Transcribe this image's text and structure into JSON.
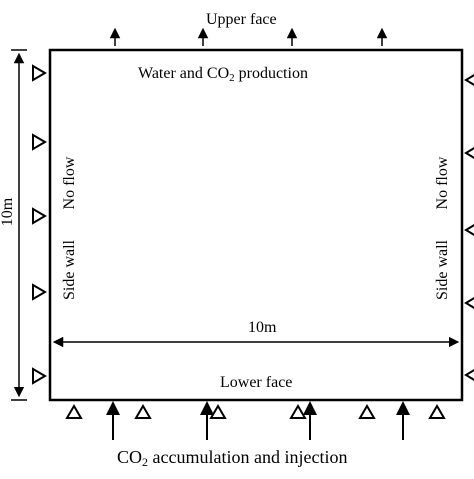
{
  "diagram": {
    "top_label": "Upper face",
    "top_inner_label": {
      "pre": "Water and CO",
      "sub": "2",
      "post": " production"
    },
    "left_no_flow": "No flow",
    "left_side_wall": "Side wall",
    "right_no_flow": "No flow",
    "right_side_wall": "Side wall",
    "height_dim": "10m",
    "width_dim": "10m",
    "lower_face": "Lower face",
    "bottom_label": {
      "pre": "CO",
      "sub": "2",
      "post": " accumulation and injection"
    }
  }
}
